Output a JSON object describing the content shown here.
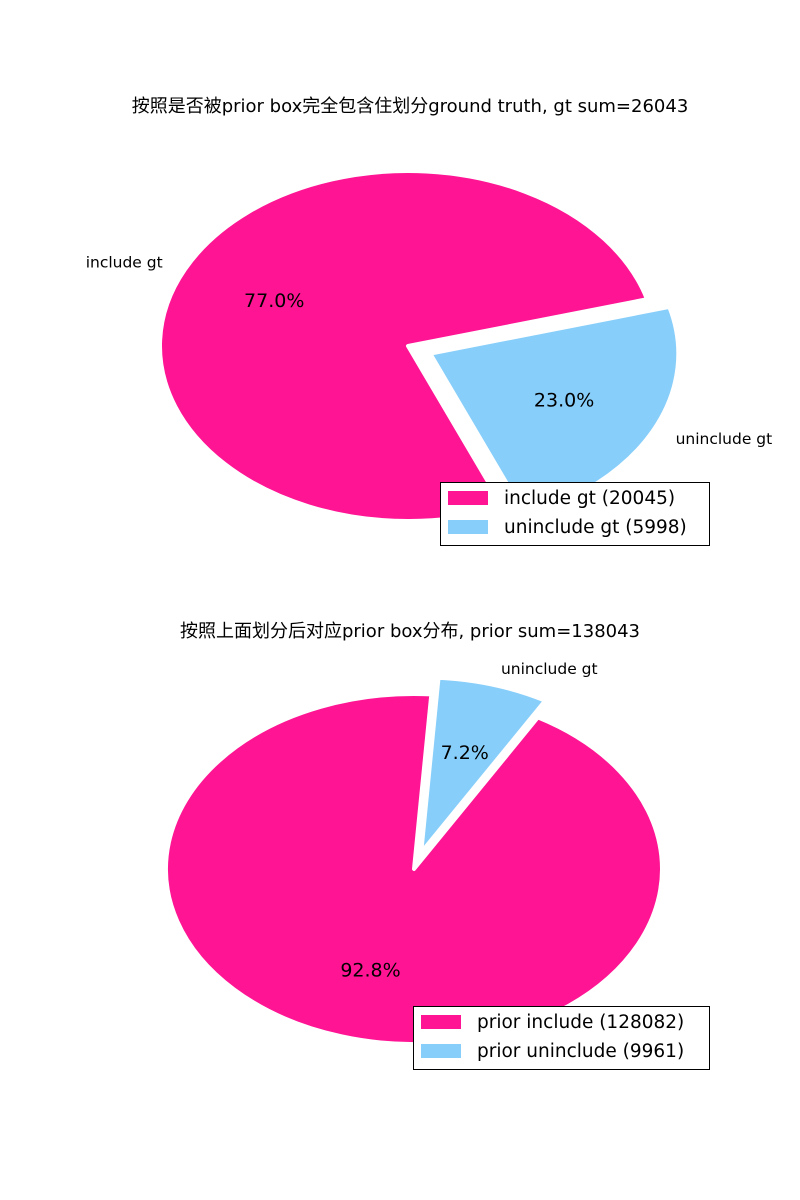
{
  "chart_data": [
    {
      "type": "pie",
      "title": "按照是否被prior box完全包含住划分ground truth, gt sum=26043",
      "slices": [
        {
          "label": "include gt",
          "value": 20045,
          "percent_label": "77.0%",
          "color": "#ff1493",
          "legend": "include gt (20045)"
        },
        {
          "label": "uninclude gt",
          "value": 5998,
          "percent_label": "23.0%",
          "color": "#87cefa",
          "legend": "uninclude gt (5998)"
        }
      ],
      "legend_position": "lower-right"
    },
    {
      "type": "pie",
      "title": "按照上面划分后对应prior box分布, prior sum=138043",
      "slices": [
        {
          "label": "",
          "value": 128082,
          "percent_label": "92.8%",
          "color": "#ff1493",
          "legend": "prior include (128082)"
        },
        {
          "label": "uninclude gt",
          "value": 9961,
          "percent_label": "7.2%",
          "color": "#87cefa",
          "legend": "prior uninclude (9961)"
        }
      ],
      "legend_position": "lower-right"
    }
  ]
}
